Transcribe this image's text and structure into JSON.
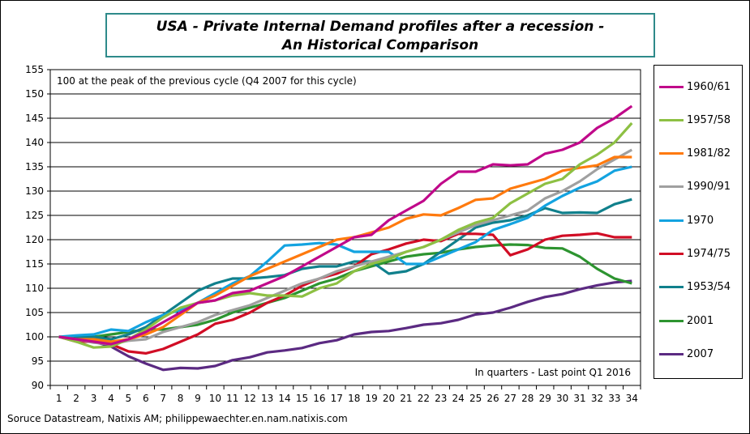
{
  "title_line1": "USA - Private Internal Demand  profiles after a recession -",
  "title_line2": "An Historical Comparison",
  "footer": "Soruce Datastream, Natixis AM; philippewaechter.en.nam.natixis.com",
  "chart_data": {
    "type": "line",
    "title": "USA - Private Internal Demand  profiles after a recession - An Historical Comparison",
    "annotation_top": "100 at the peak of the previous cycle (Q4 2007 for this cycle)",
    "annotation_bottom": "In  quarters - Last point Q1 2016",
    "xlabel": "",
    "ylabel": "",
    "ylim": [
      90,
      155
    ],
    "yticks": [
      90,
      95,
      100,
      105,
      110,
      115,
      120,
      125,
      130,
      135,
      140,
      145,
      150,
      155
    ],
    "x": [
      1,
      2,
      3,
      4,
      5,
      6,
      7,
      8,
      9,
      10,
      11,
      12,
      13,
      14,
      15,
      16,
      17,
      18,
      19,
      20,
      21,
      22,
      23,
      24,
      25,
      26,
      27,
      28,
      29,
      30,
      31,
      32,
      33,
      34
    ],
    "grid": "horizontal",
    "legend": "right",
    "series": [
      {
        "name": "1960/61",
        "color": "#c0098a",
        "values": [
          100,
          99.5,
          99,
          98.5,
          99.5,
          101,
          103,
          105,
          107,
          107.5,
          109,
          109.5,
          111,
          112.5,
          114.5,
          116.5,
          118.5,
          120.5,
          121,
          124,
          126,
          128,
          131.5,
          134,
          134,
          135.5,
          135.3,
          135.5,
          137.7,
          138.5,
          140,
          143,
          145,
          147.5
        ]
      },
      {
        "name": "1957/58",
        "color": "#8dc043",
        "values": [
          100,
          99,
          97.8,
          98,
          99.5,
          101.5,
          104,
          106,
          107,
          107.5,
          108.5,
          109,
          108.5,
          108.5,
          108.3,
          110,
          111,
          113.5,
          115,
          116,
          117.5,
          118.5,
          120,
          122,
          123.5,
          124.5,
          127.5,
          129.5,
          131.5,
          132.5,
          135.5,
          137.5,
          140,
          144
        ]
      },
      {
        "name": "1981/82",
        "color": "#ff7a0e",
        "values": [
          100,
          99.5,
          99.5,
          99,
          99.5,
          100.5,
          102,
          104.5,
          107,
          108.5,
          110.5,
          112.5,
          114,
          115.5,
          117,
          118.5,
          120,
          120.5,
          121.5,
          122.5,
          124.3,
          125.2,
          125,
          126.5,
          128.2,
          128.5,
          130.5,
          131.5,
          132.5,
          134.2,
          134.8,
          135.3,
          137,
          137
        ]
      },
      {
        "name": "1990/91",
        "color": "#a0a0a0",
        "values": [
          100,
          99.5,
          98.8,
          98.5,
          99.2,
          99.5,
          101,
          102,
          103,
          104.5,
          105.5,
          106.5,
          108,
          109.5,
          111,
          112,
          113.5,
          114.5,
          115.5,
          116.5,
          117.5,
          118.5,
          120,
          121.5,
          123,
          124,
          125,
          126,
          128.5,
          130,
          132,
          134.5,
          136.5,
          138.5
        ]
      },
      {
        "name": "1970",
        "color": "#13a3e0",
        "values": [
          100,
          100.3,
          100.5,
          101.5,
          101.2,
          103,
          104.5,
          105.5,
          107,
          109,
          111,
          112.5,
          115.5,
          118.8,
          119,
          119.3,
          119,
          117.5,
          117.5,
          117.5,
          115,
          115,
          116.5,
          118,
          119.5,
          122,
          123.2,
          124.5,
          127,
          129,
          130.7,
          132,
          134.2,
          135
        ]
      },
      {
        "name": "1974/75",
        "color": "#d10d25",
        "values": [
          100,
          99,
          99,
          98.5,
          97,
          96.6,
          97.5,
          99,
          100.5,
          102.7,
          103.5,
          105,
          107,
          108.5,
          110.5,
          112,
          113,
          114.5,
          117,
          118,
          119.2,
          120,
          119.7,
          121.2,
          121.2,
          121,
          116.8,
          118,
          120,
          120.8,
          121,
          121.3,
          120.5,
          120.5
        ]
      },
      {
        "name": "1953/54",
        "color": "#10808c",
        "values": [
          100,
          100,
          100,
          99.5,
          100.5,
          102,
          104.5,
          107,
          109.5,
          111,
          112,
          112,
          112.3,
          112.7,
          114,
          114.5,
          114.5,
          115.5,
          115.5,
          113,
          113.5,
          115,
          117.5,
          120,
          122.5,
          123.5,
          124,
          125,
          126.5,
          125.5,
          125.6,
          125.5,
          127.3,
          128.3
        ]
      },
      {
        "name": "2001",
        "color": "#2d9430",
        "values": [
          100,
          99.8,
          100,
          100.5,
          101,
          101.5,
          101.5,
          102,
          102.5,
          103.5,
          105,
          106,
          107,
          108,
          109.5,
          111,
          112,
          113.5,
          114.5,
          115.5,
          116.5,
          117,
          117.3,
          118,
          118.5,
          118.8,
          119,
          118.9,
          118.3,
          118.2,
          116.5,
          114,
          112,
          111
        ]
      },
      {
        "name": "2007",
        "color": "#5b2a82",
        "values": [
          100,
          99.5,
          99,
          98,
          96,
          94.5,
          93.2,
          93.6,
          93.5,
          94,
          95.2,
          95.8,
          96.8,
          97.2,
          97.7,
          98.7,
          99.3,
          100.5,
          101,
          101.2,
          101.8,
          102.5,
          102.8,
          103.5,
          104.6,
          105,
          106,
          107.2,
          108.2,
          108.8,
          109.8,
          110.6,
          111.2,
          111.5
        ]
      }
    ]
  }
}
